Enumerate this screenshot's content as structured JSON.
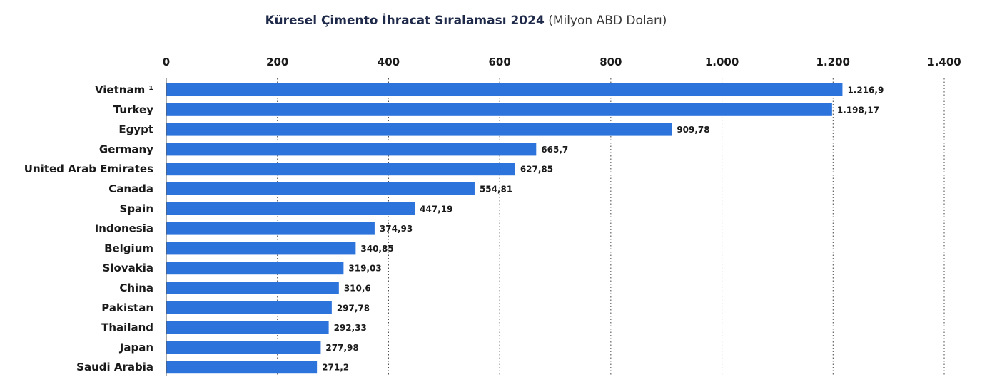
{
  "chart_data": {
    "type": "bar",
    "orientation": "horizontal",
    "title": "Küresel Çimento İhracat Sıralaması 2024",
    "subtitle": "(Milyon ABD Doları)",
    "xlabel": "",
    "ylabel": "",
    "xlim": [
      0,
      1400
    ],
    "x_ticks": [
      0,
      200,
      400,
      600,
      800,
      1000,
      1200,
      1400
    ],
    "x_tick_labels": [
      "0",
      "200",
      "400",
      "600",
      "800",
      "1.000",
      "1.200",
      "1.400"
    ],
    "grid": "vertical-dotted",
    "axis_position": "top",
    "bar_color": "#2c73dc",
    "categories": [
      "Vietnam ¹",
      "Turkey",
      "Egypt",
      "Germany",
      "United Arab Emirates",
      "Canada",
      "Spain",
      "Indonesia",
      "Belgium",
      "Slovakia",
      "China",
      "Pakistan",
      "Thailand",
      "Japan",
      "Saudi Arabia"
    ],
    "values": [
      1216.9,
      1198.17,
      909.78,
      665.7,
      627.85,
      554.81,
      447.19,
      374.93,
      340.85,
      319.03,
      310.6,
      297.78,
      292.33,
      277.98,
      271.2
    ],
    "value_labels": [
      "1.216,9",
      "1.198,17",
      "909,78",
      "665,7",
      "627,85",
      "554,81",
      "447,19",
      "374,93",
      "340,85",
      "319,03",
      "310,6",
      "297,78",
      "292,33",
      "277,98",
      "271,2"
    ]
  }
}
